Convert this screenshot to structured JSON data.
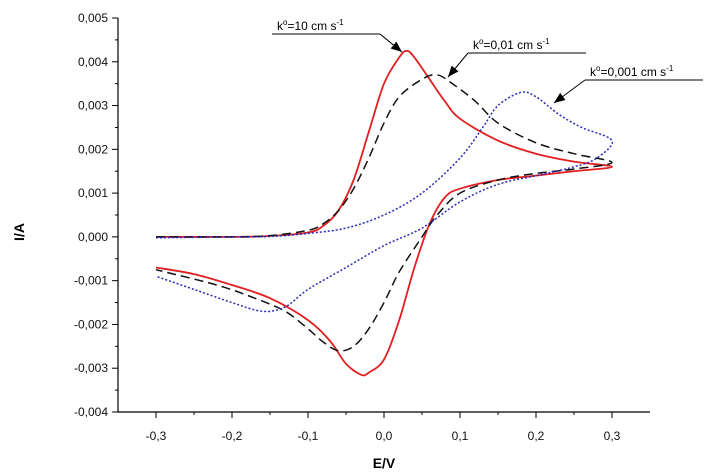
{
  "chart_data": {
    "type": "line",
    "xlabel": "E/V",
    "ylabel": "I/A",
    "xlim": [
      -0.35,
      0.35
    ],
    "ylim": [
      -0.004,
      0.005
    ],
    "x_ticks": [
      {
        "value": -0.3,
        "label": "-0,3"
      },
      {
        "value": -0.2,
        "label": "-0,2"
      },
      {
        "value": -0.1,
        "label": "-0,1"
      },
      {
        "value": 0.0,
        "label": "0,0"
      },
      {
        "value": 0.1,
        "label": "0,1"
      },
      {
        "value": 0.2,
        "label": "0,2"
      },
      {
        "value": 0.3,
        "label": "0,3"
      }
    ],
    "y_ticks": [
      {
        "value": -0.004,
        "label": "-0,004"
      },
      {
        "value": -0.003,
        "label": "-0,003"
      },
      {
        "value": -0.002,
        "label": "-0,002"
      },
      {
        "value": -0.001,
        "label": "-0,001"
      },
      {
        "value": 0.0,
        "label": "0,000"
      },
      {
        "value": 0.001,
        "label": "0,001"
      },
      {
        "value": 0.002,
        "label": "0,002"
      },
      {
        "value": 0.003,
        "label": "0,003"
      },
      {
        "value": 0.004,
        "label": "0,004"
      },
      {
        "value": 0.005,
        "label": "0,005"
      }
    ],
    "grid": false,
    "series": [
      {
        "color": "#e02020",
        "style": "solid",
        "annotation": {
          "base": "k",
          "sup1": "o",
          "mid": "=10 cm s",
          "sup2": "-1"
        },
        "points": [
          [
            -0.3,
            0.0
          ],
          [
            -0.2,
            0.0
          ],
          [
            -0.15,
            2e-05
          ],
          [
            -0.1,
            0.0001
          ],
          [
            -0.08,
            0.00025
          ],
          [
            -0.06,
            0.0006
          ],
          [
            -0.04,
            0.0013
          ],
          [
            -0.02,
            0.0024
          ],
          [
            0.0,
            0.0035
          ],
          [
            0.02,
            0.0041
          ],
          [
            0.03,
            0.00425
          ],
          [
            0.04,
            0.0041
          ],
          [
            0.06,
            0.0036
          ],
          [
            0.08,
            0.0031
          ],
          [
            0.1,
            0.0027
          ],
          [
            0.15,
            0.0022
          ],
          [
            0.2,
            0.0019
          ],
          [
            0.25,
            0.00172
          ],
          [
            0.3,
            0.0016
          ],
          [
            0.25,
            0.0015
          ],
          [
            0.2,
            0.0014
          ],
          [
            0.15,
            0.0013
          ],
          [
            0.1,
            0.0011
          ],
          [
            0.08,
            0.0009
          ],
          [
            0.06,
            0.0003
          ],
          [
            0.04,
            -0.0007
          ],
          [
            0.02,
            -0.0019
          ],
          [
            0.0,
            -0.0028
          ],
          [
            -0.02,
            -0.0031
          ],
          [
            -0.03,
            -0.00315
          ],
          [
            -0.05,
            -0.0029
          ],
          [
            -0.07,
            -0.0024
          ],
          [
            -0.1,
            -0.0019
          ],
          [
            -0.15,
            -0.0014
          ],
          [
            -0.2,
            -0.0011
          ],
          [
            -0.25,
            -0.00085
          ],
          [
            -0.3,
            -0.0007
          ]
        ]
      },
      {
        "color": "#111111",
        "style": "dashed",
        "annotation": {
          "base": "k",
          "sup1": "o",
          "mid": "=0,01 cm s",
          "sup2": "-1"
        },
        "points": [
          [
            -0.3,
            0.0
          ],
          [
            -0.2,
            0.0
          ],
          [
            -0.15,
            3e-05
          ],
          [
            -0.1,
            0.00015
          ],
          [
            -0.08,
            0.0003
          ],
          [
            -0.06,
            0.0006
          ],
          [
            -0.04,
            0.0011
          ],
          [
            -0.02,
            0.0018
          ],
          [
            0.0,
            0.0026
          ],
          [
            0.02,
            0.0032
          ],
          [
            0.05,
            0.0036
          ],
          [
            0.07,
            0.0037
          ],
          [
            0.09,
            0.0035
          ],
          [
            0.12,
            0.0031
          ],
          [
            0.15,
            0.0026
          ],
          [
            0.2,
            0.00215
          ],
          [
            0.25,
            0.0019
          ],
          [
            0.3,
            0.0017
          ],
          [
            0.25,
            0.00155
          ],
          [
            0.2,
            0.00145
          ],
          [
            0.15,
            0.0013
          ],
          [
            0.1,
            0.001
          ],
          [
            0.07,
            0.0005
          ],
          [
            0.05,
            0.0
          ],
          [
            0.02,
            -0.0008
          ],
          [
            0.0,
            -0.0015
          ],
          [
            -0.02,
            -0.0021
          ],
          [
            -0.04,
            -0.0025
          ],
          [
            -0.06,
            -0.0026
          ],
          [
            -0.08,
            -0.0024
          ],
          [
            -0.1,
            -0.0021
          ],
          [
            -0.13,
            -0.0017
          ],
          [
            -0.17,
            -0.0014
          ],
          [
            -0.22,
            -0.0011
          ],
          [
            -0.3,
            -0.00075
          ]
        ]
      },
      {
        "color": "#2a2ab8",
        "style": "dotted",
        "annotation": {
          "base": "k",
          "sup1": "o",
          "mid": "=0,001 cm s",
          "sup2": "-1"
        },
        "points": [
          [
            -0.3,
            -2e-05
          ],
          [
            -0.2,
            0.0
          ],
          [
            -0.15,
            1e-05
          ],
          [
            -0.1,
            8e-05
          ],
          [
            -0.05,
            0.0002
          ],
          [
            0.0,
            0.0005
          ],
          [
            0.05,
            0.001
          ],
          [
            0.1,
            0.0018
          ],
          [
            0.13,
            0.0025
          ],
          [
            0.15,
            0.003
          ],
          [
            0.18,
            0.0033
          ],
          [
            0.2,
            0.0032
          ],
          [
            0.23,
            0.0028
          ],
          [
            0.26,
            0.0025
          ],
          [
            0.3,
            0.0022
          ],
          [
            0.28,
            0.0018
          ],
          [
            0.25,
            0.0016
          ],
          [
            0.2,
            0.0014
          ],
          [
            0.15,
            0.0012
          ],
          [
            0.1,
            0.0008
          ],
          [
            0.05,
            0.0002
          ],
          [
            0.0,
            -0.0002
          ],
          [
            -0.05,
            -0.0007
          ],
          [
            -0.1,
            -0.0012
          ],
          [
            -0.13,
            -0.0016
          ],
          [
            -0.16,
            -0.0017
          ],
          [
            -0.2,
            -0.0015
          ],
          [
            -0.25,
            -0.0012
          ],
          [
            -0.3,
            -0.0009
          ]
        ]
      }
    ]
  }
}
